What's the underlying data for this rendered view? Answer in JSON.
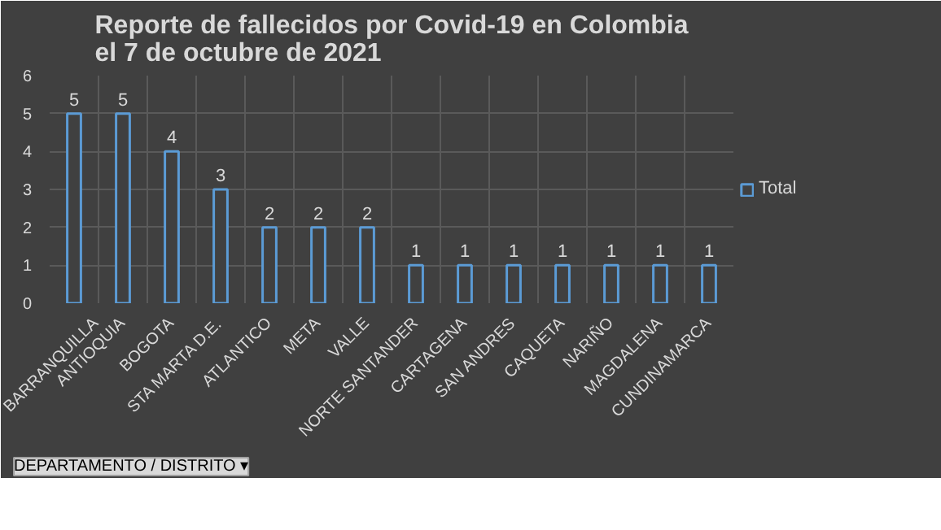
{
  "chart_data": {
    "type": "bar",
    "title": "Reporte de fallecidos por Covid-19 en Colombia\nel 7 de octubre de 2021",
    "categories": [
      "BARRANQUILLA",
      "ANTIOQUIA",
      "BOGOTA",
      "STA MARTA D.E.",
      "ATLANTICO",
      "META",
      "VALLE",
      "NORTE SANTANDER",
      "CARTAGENA",
      "SAN ANDRES",
      "CAQUETA",
      "NARIÑO",
      "MAGDALENA",
      "CUNDINAMARCA"
    ],
    "series": [
      {
        "name": "Total",
        "color": "#5b9bd5",
        "values": [
          5,
          5,
          4,
          3,
          2,
          2,
          2,
          1,
          1,
          1,
          1,
          1,
          1,
          1
        ]
      }
    ],
    "ylim": [
      0,
      6
    ],
    "yticks": [
      0,
      1,
      2,
      3,
      4,
      5,
      6
    ],
    "grid": true,
    "legend": "right",
    "data_labels": true,
    "annotations": [
      "DEPARTAMENTO / DISTRITO ▾"
    ]
  }
}
